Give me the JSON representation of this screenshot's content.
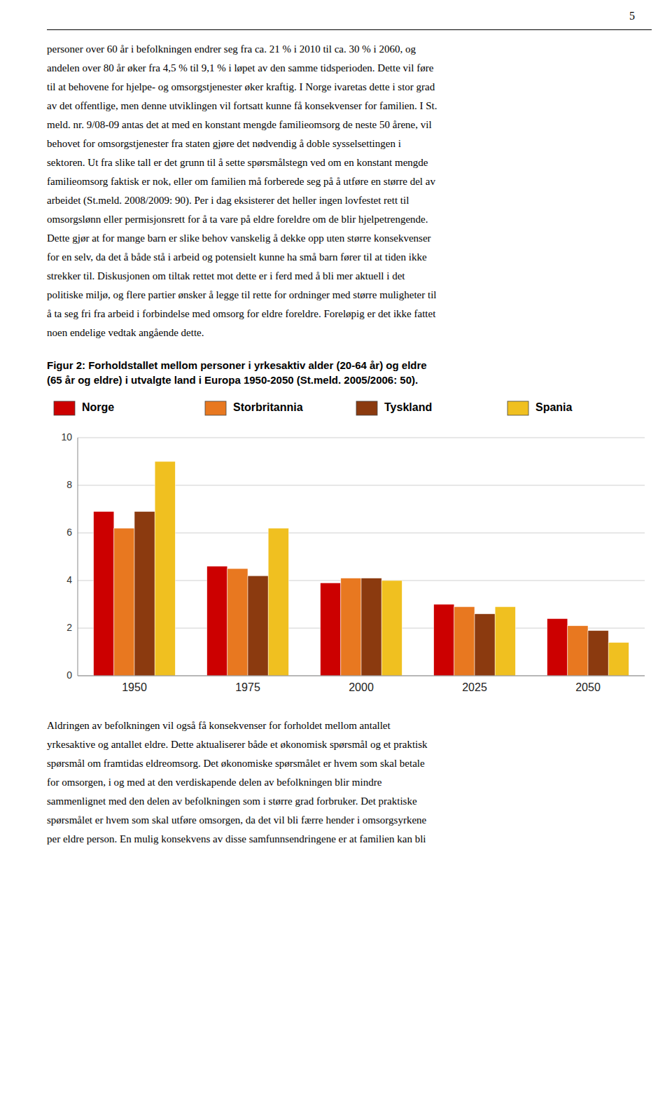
{
  "page_number": "5",
  "text_above": [
    "personer over 60 år i befolkningen endrer seg fra ca. 21 % i 2010 til ca. 30 % i 2060, og",
    "andelen over 80 år øker fra 4,5 % til 9,1 % i løpet av den samme tidsperioden. Dette vil føre",
    "til at behovene for hjelpe- og omsorgstjenester øker kraftig. I Norge ivaretas dette i stor grad",
    "av det offentlige, men denne utviklingen vil fortsatt kunne få konsekvenser for familien. I St.",
    "meld. nr. 9/08-09 antas det at med en konstant mengde familieomsorg de neste 50 årene, vil",
    "behovet for omsorgstjenester fra staten gjøre det nødvendig å doble sysselsettingen i",
    "sektoren. Ut fra slike tall er det grunn til å sette spørsmålstegn ved om en konstant mengde",
    "familieomsorg faktisk er nok, eller om familien må forberede seg på å utføre en større del av",
    "arbeidet (St.meld. 2008/2009: 90). Per i dag eksisterer det heller ingen lovfestet rett til",
    "omsorgslønn eller permisjonsrett for å ta vare på eldre foreldre om de blir hjelpetrengende.",
    "Dette gjør at for mange barn er slike behov vanskelig å dekke opp uten større konsekvenser",
    "for en selv, da det å både stå i arbeid og potensielt kunne ha små barn fører til at tiden ikke",
    "strekker til. Diskusjonen om tiltak rettet mot dette er i ferd med å bli mer aktuell i det",
    "politiske miljø, og flere partier ønsker å legge til rette for ordninger med større muligheter til",
    "å ta seg fri fra arbeid i forbindelse med omsorg for eldre foreldre. Foreløpig er det ikke fattet",
    "noen endelige vedtak angående dette."
  ],
  "chart_data": {
    "type": "bar",
    "title": "Figur 2: Forholdstallet mellom personer i yrkesaktiv alder (20-64 år) og eldre",
    "subtitle": "(65 år og eldre) i utvalgte land i Europa 1950-2050 (St.meld. 2005/2006: 50).",
    "categories": [
      "1950",
      "1975",
      "2000",
      "2025",
      "2050"
    ],
    "series": [
      {
        "name": "Norge",
        "color": "#cc0000",
        "values": [
          6.9,
          4.6,
          3.9,
          3.0,
          2.4
        ]
      },
      {
        "name": "Storbritannia",
        "color": "#e87820",
        "values": [
          6.2,
          4.5,
          4.1,
          2.9,
          2.1
        ]
      },
      {
        "name": "Tyskland",
        "color": "#8b3a0f",
        "values": [
          6.9,
          4.2,
          4.1,
          2.6,
          1.9
        ]
      },
      {
        "name": "Spania",
        "color": "#f0c020",
        "values": [
          9.0,
          6.2,
          4.0,
          2.9,
          1.4
        ]
      }
    ],
    "ylim": [
      0,
      10
    ],
    "yticks": [
      0,
      2,
      4,
      6,
      8,
      10
    ],
    "grid": true,
    "legend": "top"
  },
  "text_below": [
    "Aldringen av befolkningen vil også få konsekvenser for forholdet mellom antallet",
    "yrkesaktive og antallet eldre. Dette aktualiserer både et økonomisk spørsmål og et praktisk",
    "spørsmål om framtidas eldreomsorg. Det økonomiske spørsmålet er hvem som skal betale",
    "for omsorgen, i og med at den verdiskapende delen av befolkningen blir mindre",
    "sammenlignet med den delen av befolkningen som i større grad forbruker. Det praktiske",
    "spørsmålet er hvem som skal utføre omsorgen, da det vil bli færre hender i omsorgsyrkene",
    "per eldre person. En mulig konsekvens av disse samfunnsendringene er at familien kan bli"
  ]
}
